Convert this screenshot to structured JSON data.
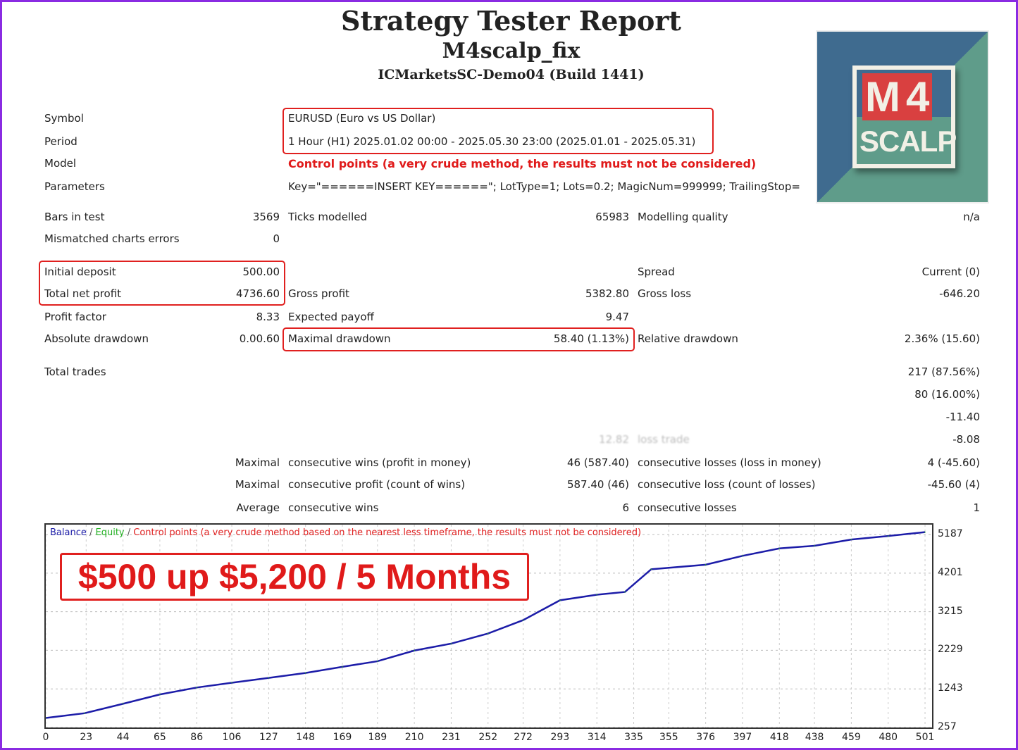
{
  "header": {
    "title": "Strategy Tester Report",
    "expert": "M4scalp_fix",
    "server": "ICMarketsSC-Demo04 (Build 1441)"
  },
  "logo": {
    "text_top": "M",
    "text_num": "4",
    "text_bottom": "SCALP"
  },
  "info": {
    "symbol_label": "Symbol",
    "symbol": "EURUSD (Euro vs US Dollar)",
    "period_label": "Period",
    "period": "1 Hour (H1) 2025.01.02 00:00 - 2025.05.30 23:00 (2025.01.01 - 2025.05.31)",
    "model_label": "Model",
    "model": "Control points (a very crude method, the results must not be considered)",
    "parameters_label": "Parameters",
    "parameters": "Key=\"======INSERT KEY======\"; LotType=1; Lots=0.2; MagicNum=999999; TrailingStop="
  },
  "stats": {
    "bars_label": "Bars in test",
    "bars": "3569",
    "ticks_label": "Ticks modelled",
    "ticks": "65983",
    "quality_label": "Modelling quality",
    "quality": "n/a",
    "mismatch_label": "Mismatched charts errors",
    "mismatch": "0",
    "deposit_label": "Initial deposit",
    "deposit": "500.00",
    "spread_label": "Spread",
    "spread": "Current (0)",
    "net_label": "Total net profit",
    "net": "4736.60",
    "gross_profit_label": "Gross profit",
    "gross_profit": "5382.80",
    "gross_loss_label": "Gross loss",
    "gross_loss": "-646.20",
    "pf_label": "Profit factor",
    "pf": "8.33",
    "payoff_label": "Expected payoff",
    "payoff": "9.47",
    "abs_dd_label": "Absolute drawdown",
    "abs_dd": "0.00.60",
    "max_dd_label": "Maximal drawdown",
    "max_dd": "58.40 (1.13%)",
    "rel_dd_label": "Relative drawdown",
    "rel_dd": "2.36% (15.60)",
    "trades_label": "Total trades",
    "trades_right": "217 (87.56%)",
    "row2_right": "80 (16.00%)",
    "row3_right": "-11.40",
    "row4_mid": "12.82",
    "row4_label": "loss trade",
    "row4_right": "-8.08",
    "max_label": "Maximal",
    "cons_wins_money_label": "consecutive wins (profit in money)",
    "cons_wins_money": "46 (587.40)",
    "cons_losses_money_label": "consecutive losses (loss in money)",
    "cons_losses_money": "4 (-45.60)",
    "cons_profit_label": "consecutive profit (count of wins)",
    "cons_profit": "587.40 (46)",
    "cons_loss_label": "consecutive loss (count of losses)",
    "cons_loss": "-45.60 (4)",
    "avg_label": "Average",
    "avg_wins_label": "consecutive wins",
    "avg_wins": "6",
    "avg_losses_label": "consecutive losses",
    "avg_losses": "1"
  },
  "overlay_text": "$500 up $5,200 / 5 Months",
  "chart_data": {
    "type": "line",
    "legend": {
      "balance": "Balance",
      "sep": " / ",
      "equity": "Equity",
      "control": "Control points (a very crude method based on the nearest less timeframe, the results must not be considered)"
    },
    "colors": {
      "balance": "#1c1ca8",
      "equity": "#22b022",
      "control": "#e02020"
    },
    "x_ticks": [
      0,
      23,
      44,
      65,
      86,
      106,
      127,
      148,
      169,
      189,
      210,
      231,
      252,
      272,
      293,
      314,
      335,
      355,
      376,
      397,
      418,
      438,
      459,
      480,
      501
    ],
    "y_ticks": [
      257,
      1243,
      2229,
      3215,
      4201,
      5187
    ],
    "ylim": [
      257,
      5440
    ],
    "xlim": [
      0,
      505
    ],
    "grid": true,
    "series": [
      {
        "name": "Balance",
        "x": [
          0,
          22,
          44,
          65,
          86,
          106,
          127,
          148,
          169,
          189,
          210,
          231,
          252,
          272,
          293,
          314,
          330,
          345,
          376,
          397,
          418,
          438,
          459,
          480,
          501
        ],
        "y": [
          500,
          620,
          862,
          1100,
          1277,
          1400,
          1523,
          1650,
          1807,
          1950,
          2223,
          2400,
          2658,
          3000,
          3508,
          3650,
          3720,
          4300,
          4416,
          4643,
          4832,
          4900,
          5060,
          5150,
          5249
        ]
      }
    ]
  }
}
